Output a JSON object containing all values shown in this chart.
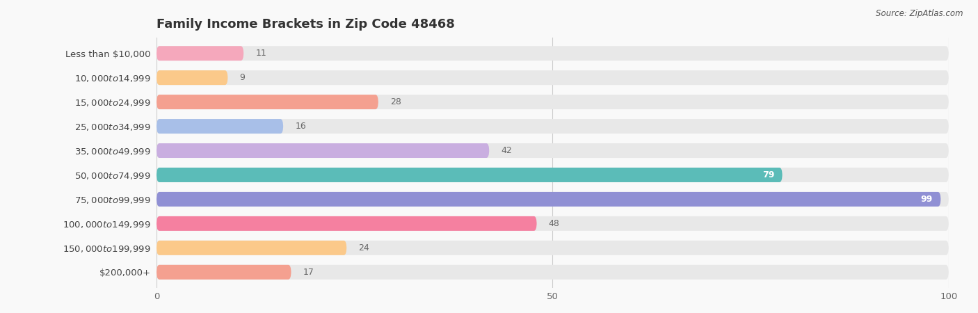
{
  "title": "Family Income Brackets in Zip Code 48468",
  "source": "Source: ZipAtlas.com",
  "categories": [
    "Less than $10,000",
    "$10,000 to $14,999",
    "$15,000 to $24,999",
    "$25,000 to $34,999",
    "$35,000 to $49,999",
    "$50,000 to $74,999",
    "$75,000 to $99,999",
    "$100,000 to $149,999",
    "$150,000 to $199,999",
    "$200,000+"
  ],
  "values": [
    11,
    9,
    28,
    16,
    42,
    79,
    99,
    48,
    24,
    17
  ],
  "bar_colors": [
    "#f5a8bc",
    "#fbc98a",
    "#f4a090",
    "#a8bfe8",
    "#c9aee0",
    "#5bbcb8",
    "#9090d4",
    "#f580a0",
    "#fbc98a",
    "#f4a090"
  ],
  "background_color": "#f9f9f9",
  "bar_bg_color": "#e8e8e8",
  "xlim": [
    0,
    100
  ],
  "xticks": [
    0,
    50,
    100
  ],
  "title_fontsize": 13,
  "label_fontsize": 9.5,
  "value_fontsize": 9,
  "bar_height": 0.6,
  "figsize": [
    14.06,
    4.5
  ],
  "dpi": 100
}
